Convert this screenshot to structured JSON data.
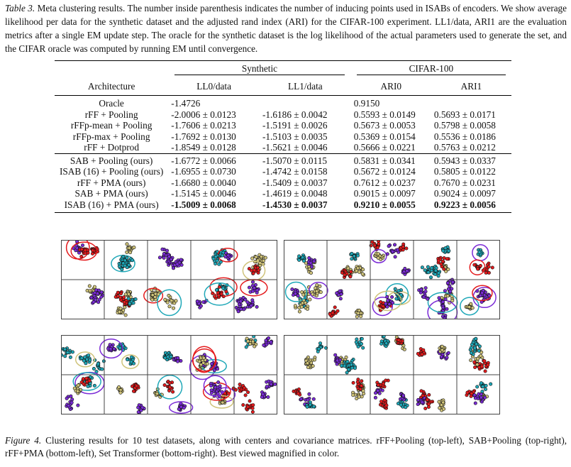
{
  "table_caption": {
    "label": "Table 3.",
    "text": "Meta clustering results. The number inside parenthesis indicates the number of inducing points used in ISABs of encoders. We show average likelihood per data for the synthetic dataset and the adjusted rand index (ARI) for the CIFAR-100 experiment. LL1/data, ARI1 are the evaluation metrics after a single EM update step. The oracle for the synthetic dataset is the log likelihood of the actual parameters used to generate the set, and the CIFAR oracle was computed by running EM until convergence."
  },
  "table": {
    "group_headers": {
      "synthetic": "Synthetic",
      "cifar": "CIFAR-100"
    },
    "columns": [
      "Architecture",
      "LL0/data",
      "LL1/data",
      "ARI0",
      "ARI1"
    ],
    "rows": [
      {
        "arch": "Oracle",
        "ll0": "-1.4726",
        "ll1": "",
        "ari0": "0.9150",
        "ari1": ""
      },
      {
        "arch": "rFF + Pooling",
        "ll0": "-2.0006 ± 0.0123",
        "ll1": "-1.6186 ± 0.0042",
        "ari0": "0.5593 ± 0.0149",
        "ari1": "0.5693 ± 0.0171"
      },
      {
        "arch": "rFFp-mean + Pooling",
        "ll0": "-1.7606 ± 0.0213",
        "ll1": "-1.5191 ± 0.0026",
        "ari0": "0.5673 ± 0.0053",
        "ari1": "0.5798 ± 0.0058"
      },
      {
        "arch": "rFFp-max + Pooling",
        "ll0": "-1.7692 ± 0.0130",
        "ll1": "-1.5103 ± 0.0035",
        "ari0": "0.5369 ± 0.0154",
        "ari1": "0.5536 ± 0.0186"
      },
      {
        "arch": "rFF + Dotprod",
        "ll0": "-1.8549 ± 0.0128",
        "ll1": "-1.5621 ± 0.0046",
        "ari0": "0.5666 ± 0.0221",
        "ari1": "0.5763 ± 0.0212"
      },
      {
        "arch": "SAB + Pooling (ours)",
        "ll0": "-1.6772 ± 0.0066",
        "ll1": "-1.5070 ± 0.0115",
        "ari0": "0.5831 ± 0.0341",
        "ari1": "0.5943 ± 0.0337"
      },
      {
        "arch": "ISAB (16) + Pooling (ours)",
        "ll0": "-1.6955 ± 0.0730",
        "ll1": "-1.4742 ± 0.0158",
        "ari0": "0.5672 ± 0.0124",
        "ari1": "0.5805 ± 0.0122"
      },
      {
        "arch": "rFF + PMA (ours)",
        "ll0": "-1.6680 ± 0.0040",
        "ll1": "-1.5409 ± 0.0037",
        "ari0": "0.7612 ± 0.0237",
        "ari1": "0.7670 ± 0.0231"
      },
      {
        "arch": "SAB + PMA (ours)",
        "ll0": "-1.5145 ± 0.0046",
        "ll1": "-1.4619 ± 0.0048",
        "ari0": "0.9015 ± 0.0097",
        "ari1": "0.9024 ± 0.0097"
      },
      {
        "arch": "ISAB (16) + PMA (ours)",
        "ll0": "-1.5009 ± 0.0068",
        "ll1": "-1.4530 ± 0.0037",
        "ari0": "0.9210 ± 0.0055",
        "ari1": "0.9223 ± 0.0056"
      }
    ]
  },
  "figure_caption": {
    "label": "Figure 4.",
    "text": "Clustering results for 10 test datasets, along with centers and covariance matrices. rFF+Pooling (top-left), SAB+Pooling (top-right), rFF+PMA (bottom-left), Set Transformer (bottom-right). Best viewed magnified in color."
  },
  "palette": [
    "#e41a1c",
    "#7b2bd6",
    "#1fa8b8",
    "#cfc37a",
    "#111111"
  ]
}
